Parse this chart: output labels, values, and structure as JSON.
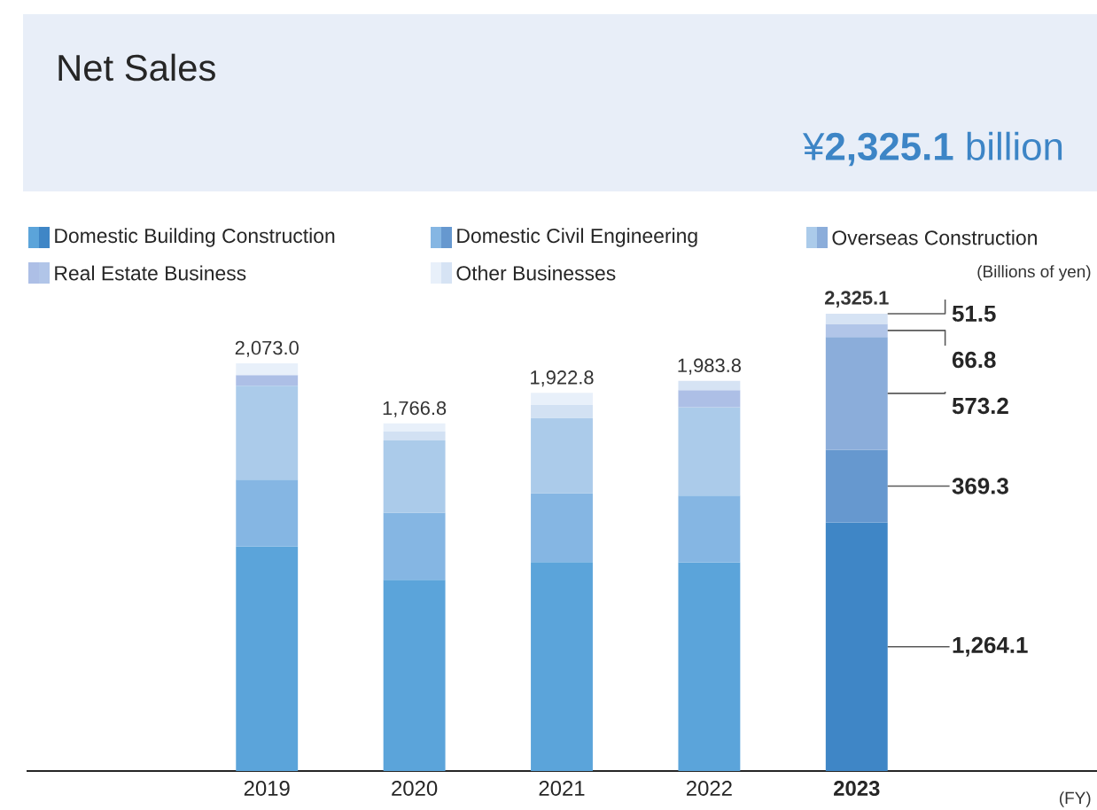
{
  "chart_data": {
    "type": "bar",
    "title": "Net Sales",
    "subtitle": "¥**2,325.1** billion",
    "categories": [
      "2019",
      "2020",
      "2021",
      "2022",
      "**2023**"
    ],
    "stacked": true,
    "series": [
      {
        "name": "Domestic Building Construction",
        "colors": [
          "#5ba4da",
          "#5ba4da",
          "#5ba4da",
          "#5ba4da",
          "#3f86c6"
        ],
        "values": [
          1142,
          972,
          1062,
          1061,
          1264.1
        ],
        "value_labels": [
          null,
          null,
          null,
          null,
          "1,264.1"
        ]
      },
      {
        "name": "Domestic Civil Engineering",
        "colors": [
          "#85b6e3",
          "#85b6e3",
          "#85b6e3",
          "#85b6e3",
          "#6698cf"
        ],
        "values": [
          339,
          341,
          350,
          339,
          369.3
        ],
        "value_labels": [
          null,
          null,
          null,
          null,
          "369.3"
        ]
      },
      {
        "name": "Overseas Construction",
        "colors": [
          "#abcbea",
          "#abcbea",
          "#abcbea",
          "#abcbea",
          "#8badda"
        ],
        "values": [
          478,
          368,
          383,
          449,
          573.2
        ],
        "value_labels": [
          null,
          null,
          null,
          null,
          "573.2"
        ]
      },
      {
        "name": "Real Estate Business",
        "colors": [
          "#adbfe6",
          "#d2e1f3",
          "#d2e1f3",
          "#adbfe6",
          "#b1c5e8"
        ],
        "values": [
          54,
          45,
          66,
          87,
          66.8
        ],
        "value_labels": [
          null,
          null,
          null,
          null,
          "66.8"
        ]
      },
      {
        "name": "Other Businesses",
        "colors": [
          "#e8f0fa",
          "#e8f0fa",
          "#e8f0fa",
          "#d6e3f4",
          "#d6e3f4"
        ],
        "values": [
          60,
          40.8,
          61.8,
          47.8,
          51.5
        ],
        "value_labels": [
          null,
          null,
          null,
          null,
          "51.5"
        ]
      }
    ],
    "totals": [
      "2,073.0",
      "1,766.8",
      "1,922.8",
      "1,983.8",
      "**2,325.1**"
    ],
    "legend": "top left",
    "annotations": [
      "(Billions of yen)",
      "(FY)"
    ]
  }
}
